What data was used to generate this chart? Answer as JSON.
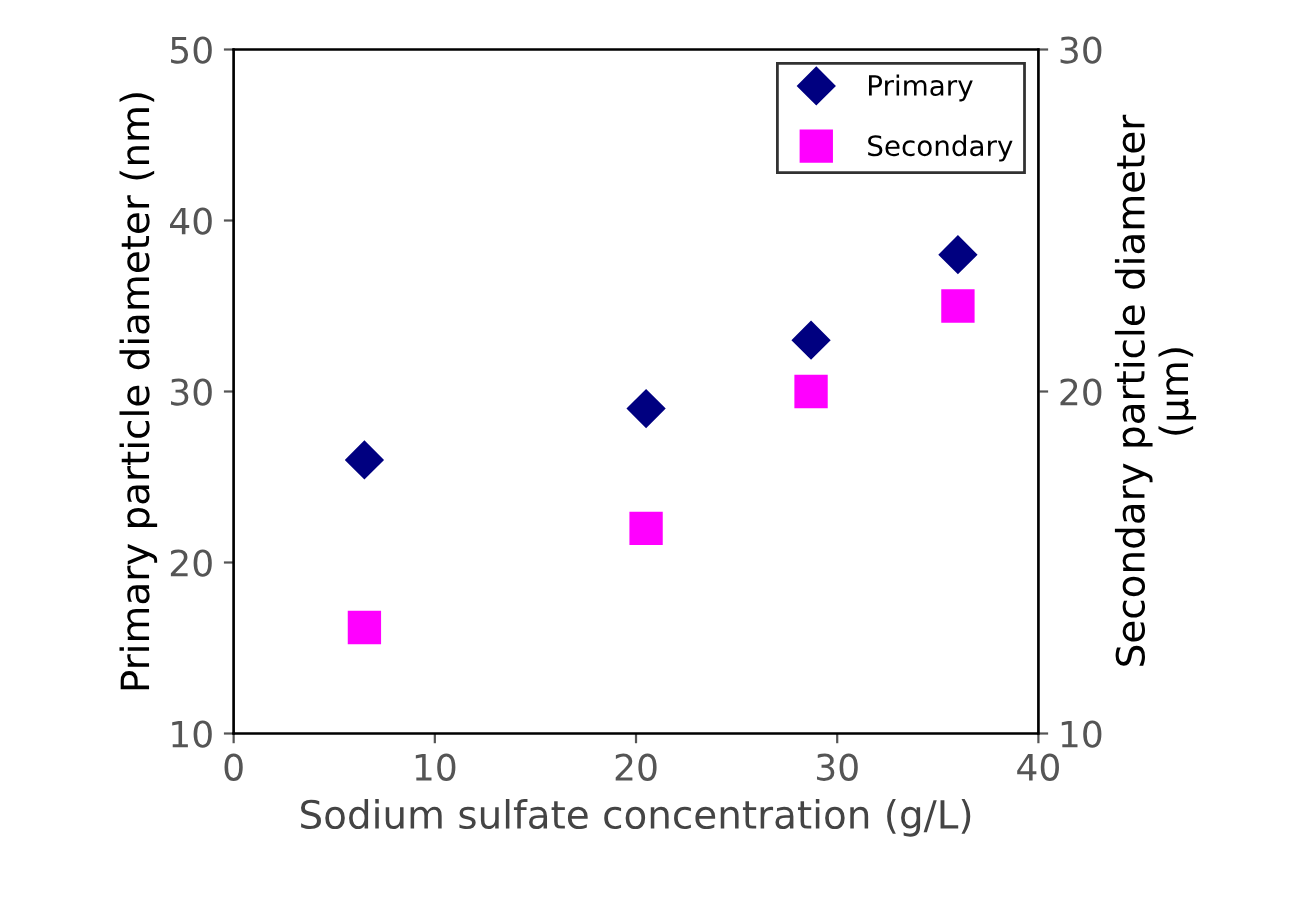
{
  "chart_data": {
    "type": "scatter",
    "xlabel": "Sodium sulfate concentration (g/L)",
    "ylabel": "Primary particle diameter (nm)",
    "y2label": "Secondary particle diameter\n(μm)",
    "series": [
      {
        "name": "Primary",
        "color": "#000080",
        "marker": "diamond",
        "x": [
          6.5,
          20.5,
          28.7,
          36
        ],
        "values": [
          26,
          29,
          33,
          38
        ]
      },
      {
        "name": "Secondary",
        "color": "#ff00ff",
        "marker": "square",
        "axis": "y2",
        "x": [
          6.5,
          20.5,
          28.7,
          36
        ],
        "values": [
          13.1,
          16,
          20,
          22.5
        ]
      }
    ],
    "xlim": [
      0,
      40
    ],
    "xticks": [
      0,
      10,
      20,
      30,
      40
    ],
    "ylim": [
      10,
      50
    ],
    "yticks": [
      10,
      20,
      30,
      40,
      50
    ],
    "y2lim": [
      10,
      30
    ],
    "y2ticks": [
      10,
      20,
      30
    ],
    "grid": false,
    "legend": "top right"
  }
}
